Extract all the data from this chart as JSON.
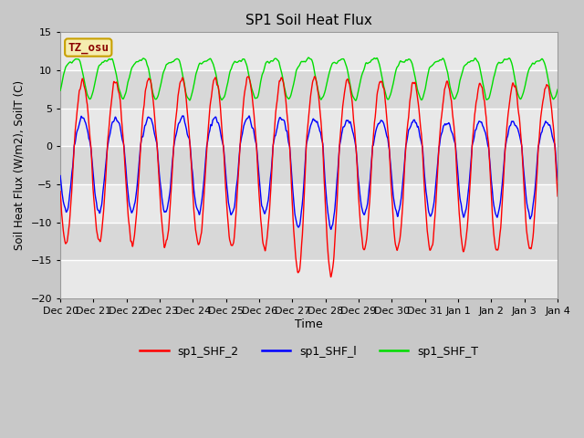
{
  "title": "SP1 Soil Heat Flux",
  "xlabel": "Time",
  "ylabel": "Soil Heat Flux (W/m2), SoilT (C)",
  "ylim": [
    -20,
    15
  ],
  "fig_bg": "#c8c8c8",
  "plot_bg_light": "#e8e8e8",
  "plot_bg_dark": "#d4d4d4",
  "grid_color": "#ffffff",
  "annotation_text": "TZ_osu",
  "annotation_bg": "#f5edb0",
  "annotation_border": "#c8a000",
  "annotation_color": "#8b0000",
  "legend_labels": [
    "sp1_SHF_2",
    "sp1_SHF_l",
    "sp1_SHF_T"
  ],
  "line_colors": [
    "#ff0000",
    "#0000ff",
    "#00dd00"
  ],
  "x_tick_labels": [
    "Dec 20",
    "Dec 21",
    "Dec 22",
    "Dec 23",
    "Dec 24",
    "Dec 25",
    "Dec 26",
    "Dec 27",
    "Dec 28",
    "Dec 29",
    "Dec 30",
    "Dec 31",
    "Jan 1",
    "Jan 2",
    "Jan 3",
    "Jan 4"
  ],
  "num_days": 15,
  "pts_per_day": 144
}
